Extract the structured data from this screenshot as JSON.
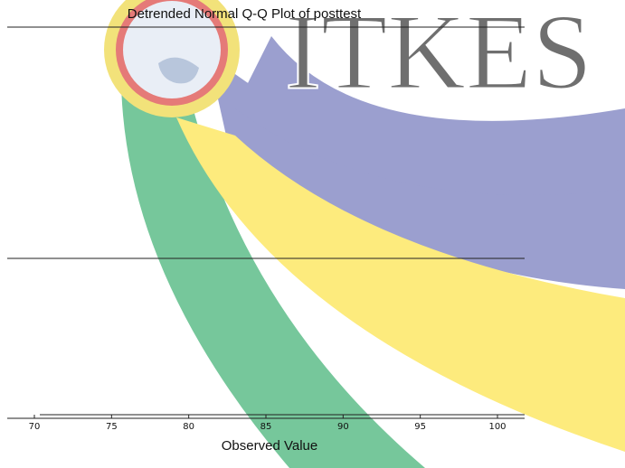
{
  "chart_data": {
    "type": "scatter",
    "title": "Detrended Normal Q-Q Plot of posttest",
    "watermark": "ITKES",
    "x_label": "Observed Value",
    "xlim": [
      70,
      100
    ],
    "xticks": [
      70,
      75,
      80,
      85,
      90,
      95,
      100
    ]
  }
}
